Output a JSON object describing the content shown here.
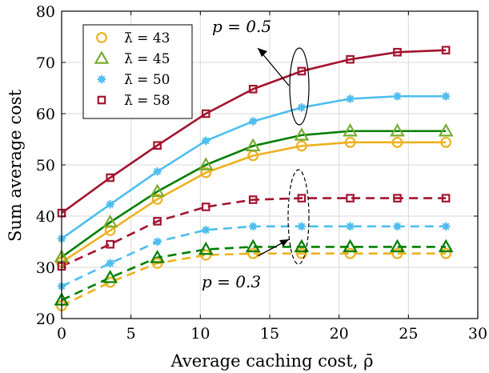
{
  "chart_data": {
    "type": "line",
    "xlabel": "Average caching cost, ρ̄",
    "ylabel": "Sum average cost",
    "xlim": [
      0,
      30
    ],
    "ylim": [
      20,
      80
    ],
    "xticks": [
      0,
      5,
      10,
      15,
      20,
      25,
      30
    ],
    "yticks": [
      20,
      30,
      40,
      50,
      60,
      70,
      80
    ],
    "grid": true,
    "legend_position": "top-left",
    "x": [
      0,
      3.5,
      6.9,
      10.4,
      13.8,
      17.3,
      20.8,
      24.2,
      27.7
    ],
    "legend": [
      {
        "label": "λ̄ = 43",
        "color": "#EDB120",
        "marker": "circle"
      },
      {
        "label": "λ̄ = 45",
        "color": "#77AC30",
        "marker": "triangle"
      },
      {
        "label": "λ̄ = 50",
        "color": "#4DBEEE",
        "marker": "asterisk"
      },
      {
        "label": "λ̄ = 58",
        "color": "#A2142F",
        "marker": "square"
      }
    ],
    "series": [
      {
        "p": "0.5",
        "lambda": 43,
        "style": "solid",
        "line_color": "#EDB120",
        "marker_color": "#EDB120",
        "marker": "circle",
        "values": [
          31.0,
          37.2,
          43.3,
          48.5,
          51.8,
          53.7,
          54.4,
          54.4,
          54.4
        ]
      },
      {
        "p": "0.5",
        "lambda": 45,
        "style": "solid",
        "line_color": "#007F00",
        "marker_color": "#77AC30",
        "marker": "triangle",
        "values": [
          32.0,
          38.8,
          44.8,
          50.0,
          53.7,
          55.8,
          56.6,
          56.6,
          56.6
        ]
      },
      {
        "p": "0.5",
        "lambda": 50,
        "style": "solid",
        "line_color": "#4DBEEE",
        "marker_color": "#4DBEEE",
        "marker": "asterisk",
        "values": [
          35.6,
          42.3,
          48.7,
          54.7,
          58.5,
          61.2,
          62.9,
          63.4,
          63.4
        ]
      },
      {
        "p": "0.5",
        "lambda": 58,
        "style": "solid",
        "line_color": "#A2142F",
        "marker_color": "#A2142F",
        "marker": "square",
        "values": [
          40.6,
          47.5,
          53.8,
          60.0,
          64.8,
          68.3,
          70.6,
          72.0,
          72.4
        ]
      },
      {
        "p": "0.3",
        "lambda": 43,
        "style": "dashed",
        "line_color": "#EDB120",
        "marker_color": "#EDB120",
        "marker": "circle",
        "values": [
          22.5,
          27.1,
          30.8,
          32.4,
          32.7,
          32.7,
          32.7,
          32.7,
          32.7
        ]
      },
      {
        "p": "0.3",
        "lambda": 45,
        "style": "dashed",
        "line_color": "#007F00",
        "marker_color": "#007F00",
        "marker": "triangle",
        "values": [
          23.6,
          28.0,
          31.9,
          33.5,
          34.0,
          34.0,
          34.0,
          34.0,
          34.0
        ]
      },
      {
        "p": "0.3",
        "lambda": 50,
        "style": "dashed",
        "line_color": "#4DBEEE",
        "marker_color": "#4DBEEE",
        "marker": "asterisk",
        "values": [
          26.3,
          30.8,
          35.0,
          37.3,
          38.0,
          38.0,
          38.0,
          38.0,
          38.0
        ]
      },
      {
        "p": "0.3",
        "lambda": 58,
        "style": "dashed",
        "line_color": "#A2142F",
        "marker_color": "#A2142F",
        "marker": "square",
        "values": [
          30.2,
          34.5,
          39.0,
          41.8,
          43.2,
          43.5,
          43.5,
          43.5,
          43.5
        ]
      }
    ],
    "annotations": [
      {
        "text": "p = 0.5",
        "points_to": [
          16.2,
          70.8
        ]
      },
      {
        "text": "p = 0.3",
        "points_to": [
          15.5,
          32.5
        ]
      }
    ]
  }
}
